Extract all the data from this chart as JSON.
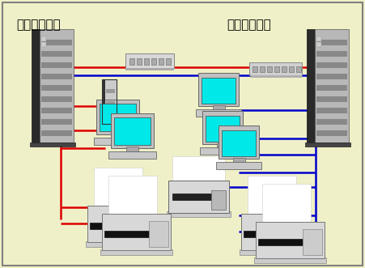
{
  "bg_color": "#f0f0c8",
  "border_color": "#808080",
  "label_left": "検診システム",
  "label_right": "検査システム",
  "label_fontsize": 11,
  "red_color": "#dd0000",
  "blue_color": "#0000cc",
  "line_width": 1.8
}
